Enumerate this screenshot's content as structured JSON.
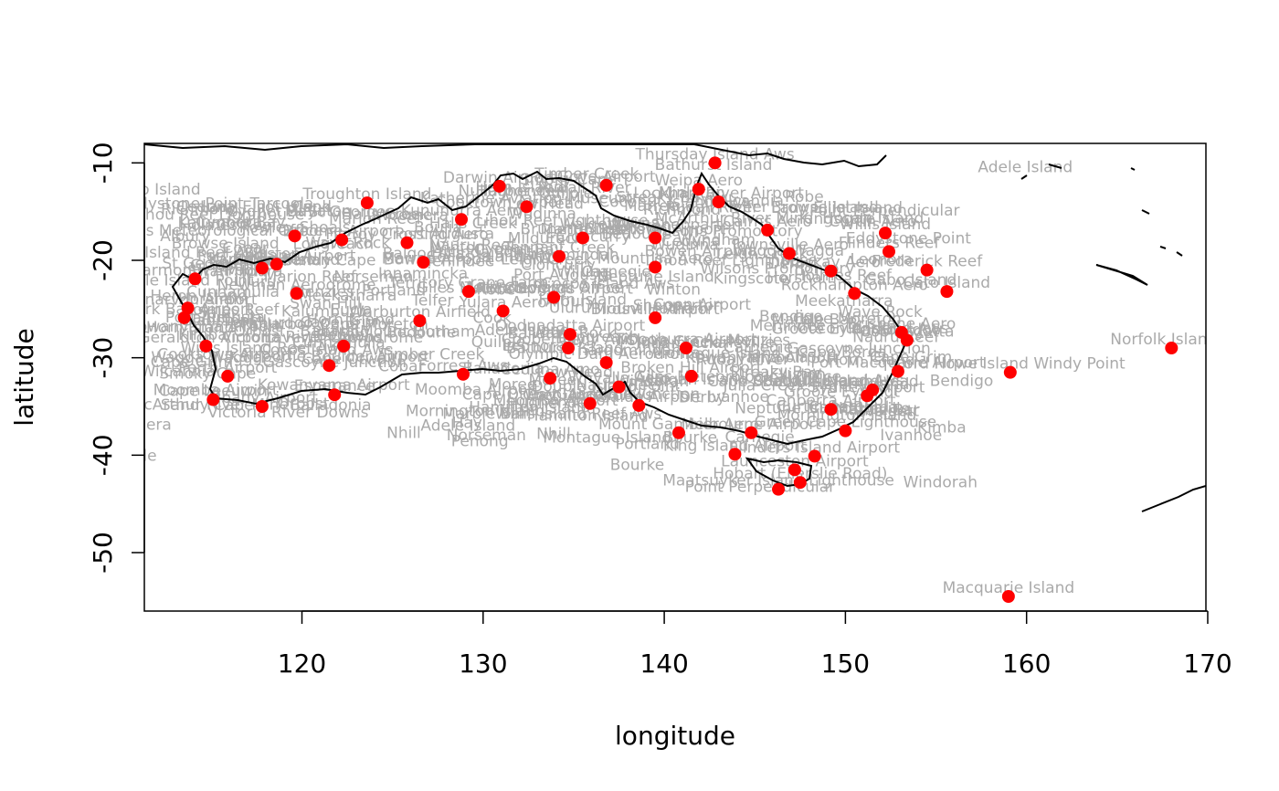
{
  "plot": {
    "xlabel": "longitude",
    "ylabel": "latitude",
    "xlim": [
      111.3,
      169.9
    ],
    "ylim": [
      -56.0,
      -8.0
    ],
    "xticks": [
      120,
      130,
      140,
      150,
      160,
      170
    ],
    "yticks": [
      -10,
      -20,
      -30,
      -40,
      -50
    ],
    "colors": {
      "point": "#ff0000",
      "label": "#aaaaaa",
      "land": "#000000",
      "label_fill": "#b3b3b3"
    }
  },
  "chart_data": {
    "type": "scatter",
    "series": [
      {
        "points": [
          {
            "x": 159.0,
            "y": -54.5,
            "label": "Macquarie Island"
          },
          {
            "x": 168.0,
            "y": -29.0,
            "label": "Norfolk Island A"
          },
          {
            "x": 159.1,
            "y": -31.5,
            "label": "Lord Howe Island Windy Point"
          },
          {
            "x": 152.2,
            "y": -17.2,
            "label": "Willis Island"
          },
          {
            "x": 152.4,
            "y": -19.1,
            "label": "Flinders Reef"
          },
          {
            "x": 154.5,
            "y": -21.0,
            "label": "Frederick Reef"
          },
          {
            "x": 155.6,
            "y": -23.2,
            "label": "Cato Island"
          },
          {
            "x": 142.8,
            "y": -10.0,
            "label": "Thursday Island Aws"
          },
          {
            "x": 143.0,
            "y": -14.0,
            "label": "Lockhart River Airport"
          },
          {
            "x": 123.6,
            "y": -14.1,
            "label": "Troughton Island"
          },
          {
            "x": 119.6,
            "y": -17.5,
            "label": "Rowley Shoals"
          },
          {
            "x": 118.6,
            "y": -20.4,
            "label": "Port Hedland Airport"
          },
          {
            "x": 126.7,
            "y": -20.2,
            "label": "Balgo Hills"
          },
          {
            "x": 129.2,
            "y": -23.2,
            "label": "Territory Grape Farm"
          },
          {
            "x": 134.2,
            "y": -19.6,
            "label": "Tennant Creek"
          },
          {
            "x": 134.8,
            "y": -27.6,
            "label": "Oodnadatta Airport"
          },
          {
            "x": 139.5,
            "y": -25.9,
            "label": "Birdsville Airport"
          },
          {
            "x": 134.7,
            "y": -29.0,
            "label": "Coober Pedy Aws"
          },
          {
            "x": 136.8,
            "y": -30.5,
            "label": "Olympic Dam Aerodrome"
          },
          {
            "x": 128.9,
            "y": -31.7,
            "label": "Forrest Aws"
          },
          {
            "x": 125.8,
            "y": -18.2,
            "label": "Fitzroy Crossing Aero"
          },
          {
            "x": 119.7,
            "y": -23.4,
            "label": "Newman Aerodrome"
          },
          {
            "x": 122.3,
            "y": -28.8,
            "label": "Laverton Aerodrome"
          },
          {
            "x": 121.5,
            "y": -30.8,
            "label": "Kalgoorlie-Boulder Airport"
          },
          {
            "x": 115.9,
            "y": -31.9,
            "label": "Perth Airport"
          },
          {
            "x": 117.8,
            "y": -35.0,
            "label": "Albany Airport"
          },
          {
            "x": 114.7,
            "y": -28.8,
            "label": "Geraldton Airport"
          },
          {
            "x": 113.7,
            "y": -24.9,
            "label": "Carnarvon Airport"
          },
          {
            "x": 130.9,
            "y": -12.4,
            "label": "Darwin Airport"
          },
          {
            "x": 132.4,
            "y": -14.5,
            "label": "Katherine Aviation Museum"
          },
          {
            "x": 133.9,
            "y": -23.8,
            "label": "Alice Springs Airport"
          },
          {
            "x": 138.6,
            "y": -34.9,
            "label": "Adelaide Airport"
          },
          {
            "x": 144.8,
            "y": -37.7,
            "label": "Melbourne Airport"
          },
          {
            "x": 151.2,
            "y": -33.9,
            "label": "Sydney Airport"
          },
          {
            "x": 153.1,
            "y": -27.4,
            "label": "Brisbane Aero"
          },
          {
            "x": 147.5,
            "y": -42.8,
            "label": "Hobart (Ellerslie Road)"
          },
          {
            "x": 147.2,
            "y": -41.5,
            "label": "Launceston Airport"
          },
          {
            "x": 146.9,
            "y": -19.3,
            "label": "Townsville Aero"
          },
          {
            "x": 145.7,
            "y": -16.9,
            "label": "Cairns Aero"
          },
          {
            "x": 149.2,
            "y": -21.1,
            "label": "Mackay Aero"
          },
          {
            "x": 150.5,
            "y": -23.4,
            "label": "Rockhampton Aero"
          },
          {
            "x": 139.5,
            "y": -20.7,
            "label": "Mount Isa Aero"
          },
          {
            "x": 141.2,
            "y": -29.0,
            "label": "Tibooburra Airport"
          },
          {
            "x": 141.5,
            "y": -31.9,
            "label": "Broken Hill Airport"
          },
          {
            "x": 149.2,
            "y": -35.3,
            "label": "Canberra Airport"
          },
          {
            "x": 140.8,
            "y": -37.7,
            "label": "Mount Gambier Aero"
          },
          {
            "x": 137.5,
            "y": -33.0,
            "label": "Whyalla Aero"
          },
          {
            "x": 135.9,
            "y": -34.7,
            "label": "Port Lincoln Aws"
          },
          {
            "x": 133.7,
            "y": -32.1,
            "label": "Ceduna Amo"
          },
          {
            "x": 141.9,
            "y": -12.7,
            "label": "Weipa Aero"
          },
          {
            "x": 139.5,
            "y": -17.7,
            "label": "Burketown Airport"
          },
          {
            "x": 136.8,
            "y": -12.3,
            "label": "Gove Airport"
          },
          {
            "x": 128.8,
            "y": -15.8,
            "label": "Kununurra Aero"
          },
          {
            "x": 122.2,
            "y": -17.9,
            "label": "Broome Airport"
          },
          {
            "x": 117.8,
            "y": -20.8,
            "label": "Karratha Aero"
          },
          {
            "x": 114.1,
            "y": -21.9,
            "label": "Learmonth Airport"
          },
          {
            "x": 113.5,
            "y": -25.9,
            "label": "Shark Bay Airport"
          },
          {
            "x": 121.8,
            "y": -33.8,
            "label": "Esperance"
          },
          {
            "x": 115.1,
            "y": -34.3,
            "label": "Cape Leeuwin"
          },
          {
            "x": 126.5,
            "y": -26.2,
            "label": "Warburton Airfield"
          },
          {
            "x": 131.1,
            "y": -25.2,
            "label": "Yulara Aero"
          },
          {
            "x": 135.5,
            "y": -17.7,
            "label": "Brunette Downs"
          },
          {
            "x": 146.3,
            "y": -43.5,
            "label": "Maatsuyker Island Lighthouse"
          },
          {
            "x": 148.3,
            "y": -40.1,
            "label": "Flinders Island Airport"
          },
          {
            "x": 143.9,
            "y": -39.9,
            "label": "King Island Airport"
          },
          {
            "x": 151.5,
            "y": -33.3,
            "label": "Norah Head"
          },
          {
            "x": 153.4,
            "y": -28.2,
            "label": "Coolangatta"
          },
          {
            "x": 152.9,
            "y": -31.4,
            "label": "Port Macquarie Airport"
          },
          {
            "x": 150.0,
            "y": -37.5,
            "label": "Green Cape Lighthouse"
          }
        ]
      }
    ],
    "xlabel": "longitude",
    "ylabel": "latitude",
    "xlim": [
      111.3,
      169.9
    ],
    "ylim": [
      -56.0,
      -8.0
    ],
    "grid": false
  },
  "extra_labels": [
    "Bathurst Island",
    "Browse Island",
    "Adele Island",
    "Cocos Island Aws",
    "Coconut Island Aws",
    "Horn Island",
    "Kowanyama Airport",
    "Willis Island Reef Aws",
    "Lihou Reef Lighthouse",
    "Holmes Reef",
    "Nauru Reef",
    "Marion Reef",
    "Carnegie",
    "Gascoyne Junction",
    "Marble Bar",
    "Rudall River",
    "Kalumburu",
    "Giles Meteorological Office",
    "Uluru",
    "Wave Rock",
    "Cygnet Bay",
    "Elliston",
    "Port Augusta",
    "Moomba Airport",
    "Wagga Wagga",
    "Mount Hotham",
    "Cape Grim",
    "Low Head",
    "Cape Bruny",
    "Eddystone Point",
    "Hogan Island",
    "Gabo Island",
    "Montague Island",
    "Point Perpendicular",
    "Smoky Cape",
    "Cape Moreton",
    "Double Island Point",
    "Sandy Cape",
    "Lady Elliot Island",
    "Heron Island",
    "Gladstone",
    "Hamilton Island",
    "Bowen Airport",
    "Lucinda Point",
    "Cooktown Airport",
    "Coen Airport",
    "Horn Island",
    "Mornington Island",
    "Groote Eylandt",
    "McArthur River Mine",
    "Victoria River Downs",
    "Timber Creek",
    "Halls Creek",
    "Wyndham",
    "Derby",
    "Curtin Aero",
    "Telfer",
    "Paraburdoo",
    "Meekatharra",
    "Wiluna",
    "Leonora",
    "Menzies",
    "Norseman",
    "Balladonia",
    "Eucla",
    "Nullarbor",
    "Cook",
    "Tarcoola",
    "Woomera",
    "Leigh Creek",
    "Marree",
    "Innamincka",
    "Thargomindah",
    "Cunnamulla",
    "Charleville",
    "Longreach",
    "Winton",
    "Richmond",
    "Hughenden",
    "Julia Creek",
    "Cloncurry",
    "Boulia",
    "Bedourie",
    "Windorah",
    "Quilpie",
    "St George",
    "Moree",
    "Walgett",
    "Bourke",
    "Cobar",
    "Wilcannia",
    "Menindee",
    "Ivanhoe",
    "Hay",
    "Mildura",
    "Swan Hill",
    "Horsham",
    "Nhill",
    "Ballarat",
    "Bendigo",
    "Shepparton",
    "Albury",
    "Orbost",
    "Sale",
    "Wilsons Promontory",
    "Cape Otway",
    "Portland",
    "Robe",
    "Kingscote",
    "Cape Borda",
    "Neptune Island",
    "Minlaton",
    "Cleve",
    "Kimba",
    "Wudinna",
    "Streaky Bay",
    "Penong",
    "Ceduna"
  ]
}
